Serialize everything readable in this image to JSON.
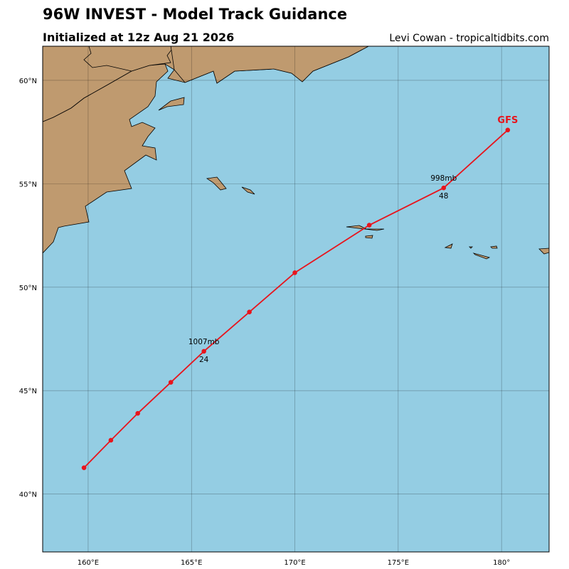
{
  "chart_data": {
    "type": "track",
    "title": "96W INVEST - Model Track Guidance",
    "subtitle": "Initialized at 12z Aug 21 2026",
    "credit": "Levi Cowan - tropicaltidbits.com",
    "xlim": [
      157.8,
      182.3
    ],
    "ylim": [
      37.2,
      61.65
    ],
    "xticks": [
      {
        "value": 160,
        "label": "160°E"
      },
      {
        "value": 165,
        "label": "165°E"
      },
      {
        "value": 170,
        "label": "170°E"
      },
      {
        "value": 175,
        "label": "175°E"
      },
      {
        "value": 180,
        "label": "180°"
      }
    ],
    "yticks": [
      {
        "value": 40,
        "label": "40°N"
      },
      {
        "value": 45,
        "label": "45°N"
      },
      {
        "value": 50,
        "label": "50°N"
      },
      {
        "value": 55,
        "label": "55°N"
      },
      {
        "value": 60,
        "label": "60°N"
      }
    ],
    "grid": true,
    "series": [
      {
        "name": "GFS",
        "color": "#e8141c",
        "x": [
          159.8,
          161.1,
          162.4,
          164.0,
          165.6,
          167.8,
          170.0,
          173.6,
          177.2,
          180.3
        ],
        "values": [
          41.27,
          42.6,
          43.9,
          45.4,
          46.9,
          48.8,
          50.7,
          53.0,
          54.8,
          57.6
        ],
        "pressure_labels": [
          null,
          null,
          null,
          null,
          "1007mb",
          null,
          null,
          null,
          "998mb",
          null
        ],
        "hour_labels": [
          null,
          null,
          null,
          null,
          24,
          null,
          null,
          null,
          48,
          null
        ]
      }
    ]
  }
}
